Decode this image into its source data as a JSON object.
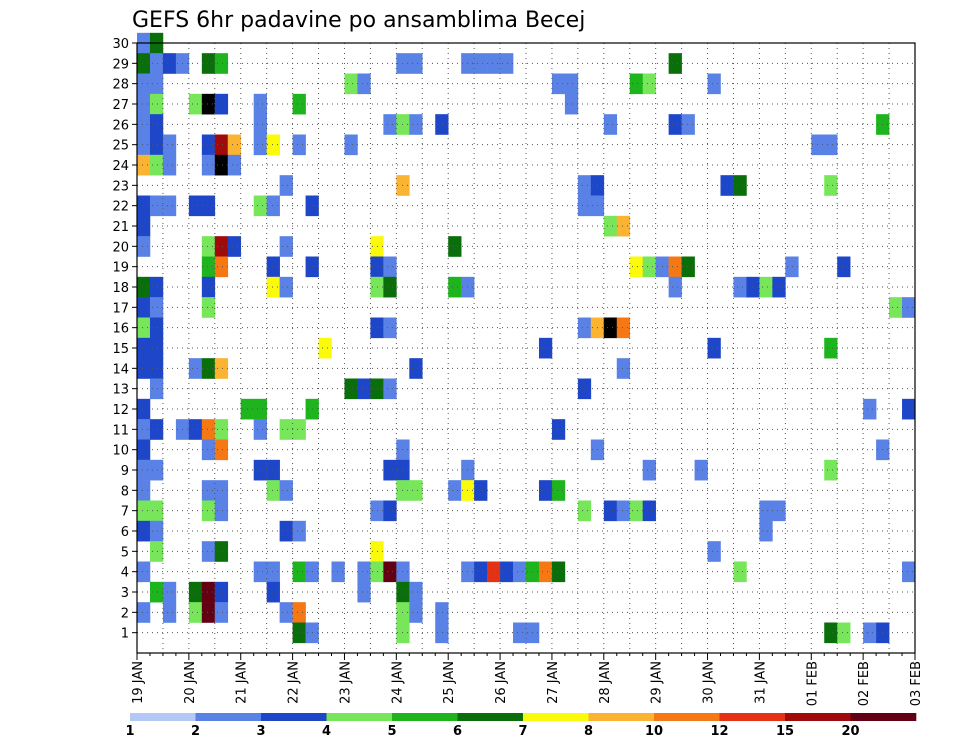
{
  "chart_data": {
    "type": "heatmap",
    "title": "GEFS 6hr padavine po ansamblima Becej",
    "y_ticks": [
      "1",
      "2",
      "3",
      "4",
      "5",
      "6",
      "7",
      "8",
      "9",
      "10",
      "11",
      "12",
      "13",
      "14",
      "15",
      "16",
      "17",
      "18",
      "19",
      "20",
      "21",
      "22",
      "23",
      "24",
      "25",
      "26",
      "27",
      "28",
      "29",
      "30"
    ],
    "x_ticks": [
      "19 JAN",
      "20 JAN",
      "21 JAN",
      "22 JAN",
      "23 JAN",
      "24 JAN",
      "25 JAN",
      "26 JAN",
      "27 JAN",
      "28 JAN",
      "29 JAN",
      "30 JAN",
      "31 JAN",
      "01 FEB",
      "02 FEB",
      "03 FEB"
    ],
    "grid": true,
    "colorbar": {
      "position": "bottom",
      "labels": [
        "1",
        "2",
        "3",
        "4",
        "5",
        "6",
        "7",
        "8",
        "10",
        "12",
        "15",
        "20"
      ],
      "colors": [
        "#b4c8f5",
        "#5a82e6",
        "#1e46c8",
        "#78e65a",
        "#1eb41e",
        "#0a6e0a",
        "#fafa0a",
        "#fab432",
        "#f57814",
        "#e63214",
        "#a00a0a",
        "#640014"
      ]
    },
    "cell_unit_hours": 6,
    "cells": [
      [
        0,
        30,
        1
      ],
      [
        1,
        30,
        5
      ],
      [
        0,
        29,
        5
      ],
      [
        1,
        29,
        1
      ],
      [
        2,
        29,
        2
      ],
      [
        3,
        29,
        1
      ],
      [
        5,
        29,
        5
      ],
      [
        6,
        29,
        4
      ],
      [
        20,
        29,
        1
      ],
      [
        21,
        29,
        1
      ],
      [
        25,
        29,
        1
      ],
      [
        26,
        29,
        1
      ],
      [
        27,
        29,
        1
      ],
      [
        28,
        29,
        1
      ],
      [
        41,
        29,
        5
      ],
      [
        0,
        28,
        1
      ],
      [
        1,
        28,
        1
      ],
      [
        16,
        28,
        3
      ],
      [
        17,
        28,
        1
      ],
      [
        32,
        28,
        1
      ],
      [
        33,
        28,
        1
      ],
      [
        38,
        28,
        4
      ],
      [
        39,
        28,
        3
      ],
      [
        44,
        28,
        1
      ],
      [
        0,
        27,
        1
      ],
      [
        1,
        27,
        3
      ],
      [
        4,
        27,
        3
      ],
      [
        5,
        27,
        12
      ],
      [
        6,
        27,
        2
      ],
      [
        9,
        27,
        1
      ],
      [
        12,
        27,
        4
      ],
      [
        33,
        27,
        1
      ],
      [
        0,
        26,
        1
      ],
      [
        1,
        26,
        2
      ],
      [
        9,
        26,
        1
      ],
      [
        19,
        26,
        1
      ],
      [
        20,
        26,
        3
      ],
      [
        21,
        26,
        1
      ],
      [
        23,
        26,
        2
      ],
      [
        36,
        26,
        1
      ],
      [
        41,
        26,
        2
      ],
      [
        42,
        26,
        1
      ],
      [
        57,
        26,
        4
      ],
      [
        0,
        25,
        1
      ],
      [
        1,
        25,
        2
      ],
      [
        2,
        25,
        1
      ],
      [
        5,
        25,
        2
      ],
      [
        6,
        25,
        10
      ],
      [
        7,
        25,
        7
      ],
      [
        9,
        25,
        1
      ],
      [
        10,
        25,
        6
      ],
      [
        12,
        25,
        1
      ],
      [
        16,
        25,
        1
      ],
      [
        52,
        25,
        1
      ],
      [
        53,
        25,
        1
      ],
      [
        0,
        24,
        7
      ],
      [
        1,
        24,
        3
      ],
      [
        2,
        24,
        1
      ],
      [
        5,
        24,
        1
      ],
      [
        6,
        24,
        12
      ],
      [
        7,
        24,
        1
      ],
      [
        11,
        23,
        1
      ],
      [
        20,
        23,
        7
      ],
      [
        34,
        23,
        1
      ],
      [
        35,
        23,
        2
      ],
      [
        45,
        23,
        2
      ],
      [
        46,
        23,
        5
      ],
      [
        53,
        23,
        3
      ],
      [
        0,
        22,
        2
      ],
      [
        1,
        22,
        1
      ],
      [
        2,
        22,
        1
      ],
      [
        4,
        22,
        2
      ],
      [
        5,
        22,
        2
      ],
      [
        9,
        22,
        3
      ],
      [
        10,
        22,
        1
      ],
      [
        13,
        22,
        2
      ],
      [
        34,
        22,
        1
      ],
      [
        35,
        22,
        1
      ],
      [
        0,
        21,
        2
      ],
      [
        36,
        21,
        3
      ],
      [
        37,
        21,
        7
      ],
      [
        0,
        20,
        1
      ],
      [
        5,
        20,
        3
      ],
      [
        6,
        20,
        10
      ],
      [
        7,
        20,
        2
      ],
      [
        11,
        20,
        1
      ],
      [
        18,
        20,
        6
      ],
      [
        24,
        20,
        5
      ],
      [
        5,
        19,
        4
      ],
      [
        6,
        19,
        8
      ],
      [
        10,
        19,
        2
      ],
      [
        13,
        19,
        2
      ],
      [
        18,
        19,
        2
      ],
      [
        19,
        19,
        1
      ],
      [
        38,
        19,
        6
      ],
      [
        39,
        19,
        3
      ],
      [
        40,
        19,
        1
      ],
      [
        41,
        19,
        8
      ],
      [
        42,
        19,
        5
      ],
      [
        50,
        19,
        1
      ],
      [
        54,
        19,
        2
      ],
      [
        0,
        18,
        5
      ],
      [
        1,
        18,
        2
      ],
      [
        5,
        18,
        2
      ],
      [
        10,
        18,
        6
      ],
      [
        11,
        18,
        1
      ],
      [
        18,
        18,
        3
      ],
      [
        19,
        18,
        5
      ],
      [
        24,
        18,
        4
      ],
      [
        25,
        18,
        1
      ],
      [
        41,
        18,
        1
      ],
      [
        46,
        18,
        1
      ],
      [
        47,
        18,
        2
      ],
      [
        48,
        18,
        3
      ],
      [
        49,
        18,
        2
      ],
      [
        0,
        17,
        2
      ],
      [
        1,
        17,
        1
      ],
      [
        5,
        17,
        3
      ],
      [
        58,
        17,
        3
      ],
      [
        59,
        17,
        1
      ],
      [
        0,
        16,
        3
      ],
      [
        1,
        16,
        2
      ],
      [
        18,
        16,
        2
      ],
      [
        19,
        16,
        1
      ],
      [
        34,
        16,
        1
      ],
      [
        35,
        16,
        7
      ],
      [
        36,
        16,
        12
      ],
      [
        37,
        16,
        8
      ],
      [
        0,
        15,
        2
      ],
      [
        1,
        15,
        2
      ],
      [
        14,
        15,
        6
      ],
      [
        31,
        15,
        2
      ],
      [
        44,
        15,
        2
      ],
      [
        53,
        15,
        4
      ],
      [
        0,
        14,
        2
      ],
      [
        1,
        14,
        2
      ],
      [
        4,
        14,
        1
      ],
      [
        5,
        14,
        5
      ],
      [
        6,
        14,
        7
      ],
      [
        21,
        14,
        2
      ],
      [
        37,
        14,
        1
      ],
      [
        1,
        13,
        1
      ],
      [
        16,
        13,
        5
      ],
      [
        17,
        13,
        2
      ],
      [
        18,
        13,
        5
      ],
      [
        19,
        13,
        1
      ],
      [
        34,
        13,
        2
      ],
      [
        0,
        12,
        2
      ],
      [
        8,
        12,
        4
      ],
      [
        9,
        12,
        4
      ],
      [
        13,
        12,
        4
      ],
      [
        56,
        12,
        1
      ],
      [
        59,
        12,
        2
      ],
      [
        0,
        11,
        1
      ],
      [
        1,
        11,
        2
      ],
      [
        3,
        11,
        1
      ],
      [
        4,
        11,
        2
      ],
      [
        5,
        11,
        8
      ],
      [
        6,
        11,
        3
      ],
      [
        9,
        11,
        1
      ],
      [
        11,
        11,
        3
      ],
      [
        12,
        11,
        3
      ],
      [
        32,
        11,
        2
      ],
      [
        0,
        10,
        2
      ],
      [
        5,
        10,
        1
      ],
      [
        6,
        10,
        8
      ],
      [
        20,
        10,
        1
      ],
      [
        35,
        10,
        1
      ],
      [
        57,
        10,
        1
      ],
      [
        0,
        9,
        1
      ],
      [
        1,
        9,
        1
      ],
      [
        9,
        9,
        2
      ],
      [
        10,
        9,
        2
      ],
      [
        19,
        9,
        2
      ],
      [
        20,
        9,
        2
      ],
      [
        25,
        9,
        1
      ],
      [
        39,
        9,
        1
      ],
      [
        43,
        9,
        1
      ],
      [
        53,
        9,
        3
      ],
      [
        0,
        8,
        1
      ],
      [
        5,
        8,
        1
      ],
      [
        6,
        8,
        1
      ],
      [
        10,
        8,
        3
      ],
      [
        11,
        8,
        1
      ],
      [
        20,
        8,
        3
      ],
      [
        21,
        8,
        3
      ],
      [
        24,
        8,
        1
      ],
      [
        25,
        8,
        6
      ],
      [
        26,
        8,
        2
      ],
      [
        31,
        8,
        2
      ],
      [
        32,
        8,
        4
      ],
      [
        0,
        7,
        3
      ],
      [
        1,
        7,
        3
      ],
      [
        5,
        7,
        3
      ],
      [
        6,
        7,
        1
      ],
      [
        18,
        7,
        1
      ],
      [
        19,
        7,
        2
      ],
      [
        34,
        7,
        3
      ],
      [
        36,
        7,
        2
      ],
      [
        37,
        7,
        1
      ],
      [
        38,
        7,
        3
      ],
      [
        39,
        7,
        2
      ],
      [
        48,
        7,
        1
      ],
      [
        49,
        7,
        1
      ],
      [
        0,
        6,
        2
      ],
      [
        1,
        6,
        1
      ],
      [
        11,
        6,
        2
      ],
      [
        12,
        6,
        1
      ],
      [
        48,
        6,
        1
      ],
      [
        1,
        5,
        3
      ],
      [
        5,
        5,
        1
      ],
      [
        6,
        5,
        5
      ],
      [
        18,
        5,
        6
      ],
      [
        44,
        5,
        1
      ],
      [
        0,
        4,
        1
      ],
      [
        9,
        4,
        1
      ],
      [
        10,
        4,
        1
      ],
      [
        12,
        4,
        4
      ],
      [
        13,
        4,
        1
      ],
      [
        15,
        4,
        1
      ],
      [
        17,
        4,
        1
      ],
      [
        18,
        4,
        3
      ],
      [
        19,
        4,
        11
      ],
      [
        20,
        4,
        1
      ],
      [
        25,
        4,
        1
      ],
      [
        26,
        4,
        2
      ],
      [
        27,
        4,
        9
      ],
      [
        28,
        4,
        2
      ],
      [
        29,
        4,
        1
      ],
      [
        30,
        4,
        4
      ],
      [
        31,
        4,
        8
      ],
      [
        32,
        4,
        5
      ],
      [
        46,
        4,
        3
      ],
      [
        59,
        4,
        1
      ],
      [
        1,
        3,
        4
      ],
      [
        2,
        3,
        1
      ],
      [
        4,
        3,
        5
      ],
      [
        5,
        3,
        11
      ],
      [
        6,
        3,
        2
      ],
      [
        10,
        3,
        2
      ],
      [
        17,
        3,
        1
      ],
      [
        20,
        3,
        5
      ],
      [
        21,
        3,
        1
      ],
      [
        0,
        2,
        1
      ],
      [
        2,
        2,
        1
      ],
      [
        4,
        2,
        3
      ],
      [
        5,
        2,
        11
      ],
      [
        6,
        2,
        1
      ],
      [
        11,
        2,
        1
      ],
      [
        12,
        2,
        8
      ],
      [
        20,
        2,
        3
      ],
      [
        21,
        2,
        1
      ],
      [
        23,
        2,
        1
      ],
      [
        12,
        1,
        5
      ],
      [
        13,
        1,
        1
      ],
      [
        20,
        1,
        3
      ],
      [
        23,
        1,
        1
      ],
      [
        29,
        1,
        1
      ],
      [
        30,
        1,
        1
      ],
      [
        53,
        1,
        5
      ],
      [
        54,
        1,
        3
      ],
      [
        56,
        1,
        1
      ],
      [
        57,
        1,
        2
      ]
    ]
  }
}
